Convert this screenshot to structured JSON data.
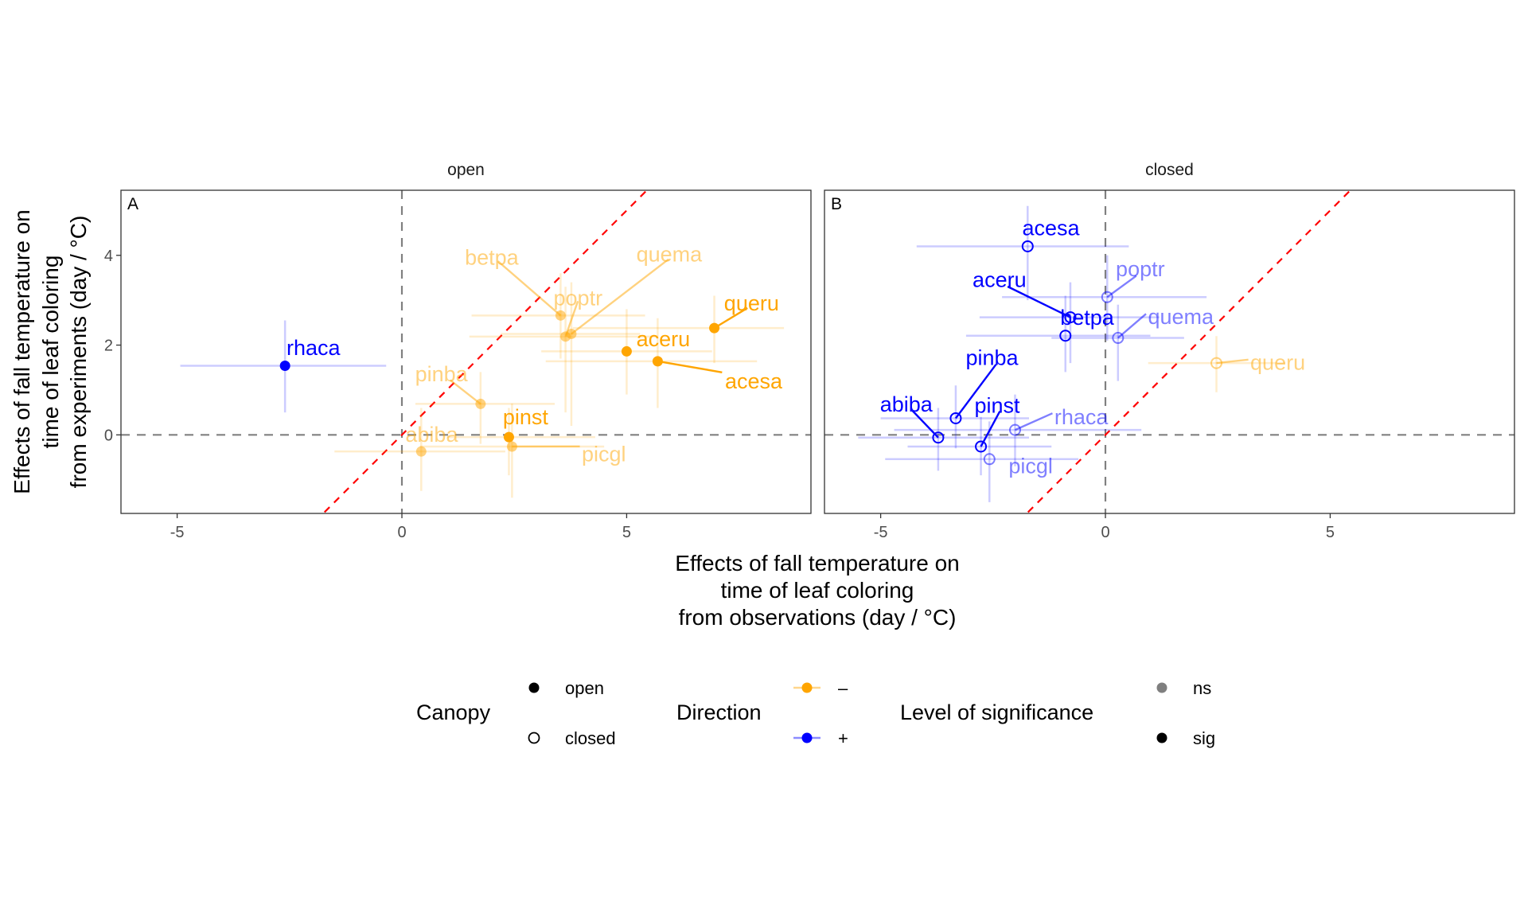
{
  "chart_data": {
    "type": "scatter",
    "xlabel": [
      "Effects of fall temperature on",
      "time of leaf coloring",
      "from observations (day / °C)"
    ],
    "ylabel": [
      "Effects of fall temperature on",
      "time of leaf coloring",
      "from experiments (day / °C)"
    ],
    "xlim": [
      -6.25,
      9.1
    ],
    "ylim": [
      -1.75,
      5.45
    ],
    "x_ticks": [
      "-5",
      "0",
      "5"
    ],
    "y_ticks": [
      "0",
      "2",
      "4"
    ],
    "x_tick_values": [
      -5,
      0,
      5
    ],
    "y_tick_values": [
      0,
      2,
      4
    ],
    "reference_lines": {
      "vertical": 0,
      "horizontal": 0,
      "identity": "y = x"
    },
    "colors": {
      "minus": "#FFA500",
      "plus": "#0000FF",
      "identity": "#FF0000",
      "zero": "#808080"
    },
    "panels": [
      {
        "tag": "A",
        "strip": "open",
        "points": [
          {
            "species": "rhaca",
            "x": -2.6,
            "y": 1.54,
            "xlo": -4.93,
            "xhi": -0.35,
            "ylo": 0.5,
            "yhi": 2.55,
            "direction": "+",
            "sig": "sig"
          },
          {
            "species": "betpa",
            "x": 3.53,
            "y": 2.66,
            "xlo": 1.55,
            "xhi": 5.41,
            "ylo": 1.7,
            "yhi": 3.6,
            "direction": "–",
            "sig": "ns"
          },
          {
            "species": "poptr",
            "x": 3.64,
            "y": 2.19,
            "xlo": 1.5,
            "xhi": 5.7,
            "ylo": 0.5,
            "yhi": 3.3,
            "direction": "–",
            "sig": "ns"
          },
          {
            "species": "quema",
            "x": 3.77,
            "y": 2.25,
            "xlo": 2.2,
            "xhi": 5.3,
            "ylo": 0.2,
            "yhi": 3.4,
            "direction": "–",
            "sig": "ns"
          },
          {
            "species": "queru",
            "x": 6.95,
            "y": 2.38,
            "xlo": 3.8,
            "xhi": 8.5,
            "ylo": 1.6,
            "yhi": 3.1,
            "direction": "–",
            "sig": "sig"
          },
          {
            "species": "aceru",
            "x": 5.0,
            "y": 1.86,
            "xlo": 3.1,
            "xhi": 6.9,
            "ylo": 0.9,
            "yhi": 2.8,
            "direction": "–",
            "sig": "sig"
          },
          {
            "species": "acesa",
            "x": 5.69,
            "y": 1.64,
            "xlo": 3.2,
            "xhi": 7.9,
            "ylo": 0.6,
            "yhi": 2.6,
            "direction": "–",
            "sig": "sig"
          },
          {
            "species": "pinba",
            "x": 1.75,
            "y": 0.69,
            "xlo": 0.3,
            "xhi": 3.4,
            "ylo": -0.2,
            "yhi": 1.4,
            "direction": "–",
            "sig": "ns"
          },
          {
            "species": "pinst",
            "x": 2.38,
            "y": -0.05,
            "xlo": 1.0,
            "xhi": 4.3,
            "ylo": -0.9,
            "yhi": 0.6,
            "direction": "–",
            "sig": "sig"
          },
          {
            "species": "picgl",
            "x": 2.45,
            "y": -0.26,
            "xlo": 0.4,
            "xhi": 4.5,
            "ylo": -1.4,
            "yhi": 0.7,
            "direction": "–",
            "sig": "ns"
          },
          {
            "species": "abiba",
            "x": 0.43,
            "y": -0.37,
            "xlo": -1.5,
            "xhi": 2.3,
            "ylo": -1.25,
            "yhi": 0.6,
            "direction": "–",
            "sig": "ns"
          }
        ]
      },
      {
        "tag": "B",
        "strip": "closed",
        "points": [
          {
            "species": "acesa",
            "x": -1.73,
            "y": 4.2,
            "xlo": -4.2,
            "xhi": 0.52,
            "ylo": 3.0,
            "yhi": 5.1,
            "direction": "+",
            "sig": "sig"
          },
          {
            "species": "poptr",
            "x": 0.04,
            "y": 3.07,
            "xlo": -2.3,
            "xhi": 2.25,
            "ylo": 2.1,
            "yhi": 4.0,
            "direction": "+",
            "sig": "ns"
          },
          {
            "species": "aceru",
            "x": -0.78,
            "y": 2.62,
            "xlo": -2.8,
            "xhi": 1.2,
            "ylo": 1.6,
            "yhi": 3.4,
            "direction": "+",
            "sig": "sig"
          },
          {
            "species": "betpa",
            "x": -0.89,
            "y": 2.21,
            "xlo": -3.1,
            "xhi": 1.0,
            "ylo": 1.4,
            "yhi": 3.1,
            "direction": "+",
            "sig": "sig"
          },
          {
            "species": "quema",
            "x": 0.28,
            "y": 2.16,
            "xlo": -1.2,
            "xhi": 1.75,
            "ylo": 1.2,
            "yhi": 2.9,
            "direction": "+",
            "sig": "ns"
          },
          {
            "species": "queru",
            "x": 2.47,
            "y": 1.6,
            "xlo": 0.95,
            "xhi": 4.0,
            "ylo": 0.95,
            "yhi": 2.2,
            "direction": "–",
            "sig": "ns"
          },
          {
            "species": "pinba",
            "x": -3.33,
            "y": 0.37,
            "xlo": -5.0,
            "xhi": -1.7,
            "ylo": -0.3,
            "yhi": 1.1,
            "direction": "+",
            "sig": "sig"
          },
          {
            "species": "abiba",
            "x": -3.72,
            "y": -0.06,
            "xlo": -5.5,
            "xhi": -1.7,
            "ylo": -0.8,
            "yhi": 0.6,
            "direction": "+",
            "sig": "sig"
          },
          {
            "species": "pinst",
            "x": -2.77,
            "y": -0.26,
            "xlo": -4.4,
            "xhi": -1.2,
            "ylo": -0.9,
            "yhi": 0.4,
            "direction": "+",
            "sig": "sig"
          },
          {
            "species": "rhaca",
            "x": -2.01,
            "y": 0.11,
            "xlo": -4.7,
            "xhi": 0.8,
            "ylo": -0.7,
            "yhi": 0.9,
            "direction": "+",
            "sig": "ns"
          },
          {
            "species": "picgl",
            "x": -2.58,
            "y": -0.54,
            "xlo": -4.9,
            "xhi": -0.6,
            "ylo": -1.5,
            "yhi": 0.3,
            "direction": "+",
            "sig": "ns"
          }
        ]
      }
    ],
    "legend": {
      "placement": "bottom",
      "groups": [
        {
          "title": "Canopy",
          "items": [
            "open",
            "closed"
          ]
        },
        {
          "title": "Direction",
          "items": [
            "–",
            "+"
          ]
        },
        {
          "title": "Level of significance",
          "items": [
            "ns",
            "sig"
          ]
        }
      ]
    }
  }
}
